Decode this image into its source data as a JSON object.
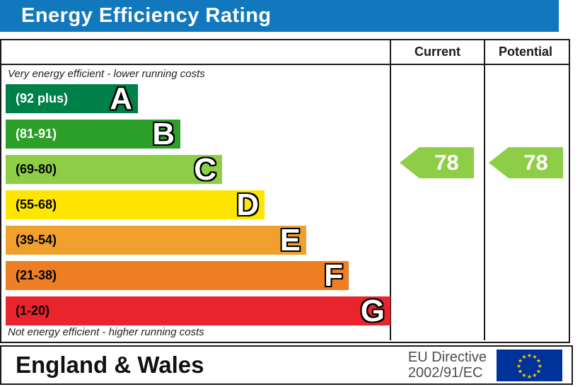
{
  "title": "Energy Efficiency Rating",
  "table": {
    "current_header": "Current",
    "potential_header": "Potential"
  },
  "captions": {
    "top": "Very energy efficient - lower running costs",
    "bottom": "Not energy efficient - higher running costs"
  },
  "footer": {
    "region": "England & Wales",
    "directive": [
      "EU Directive",
      "2002/91/EC"
    ]
  },
  "colors": {
    "title_bar": "#1278be",
    "border": "#1a1a1a",
    "arrow": "#8dce46",
    "eu_flag_bg": "#003399",
    "eu_star": "#ffcc00"
  },
  "chart_data": {
    "type": "bar",
    "orientation": "horizontal",
    "title": "Energy Efficiency Rating",
    "scale": [
      1,
      100
    ],
    "bands": [
      {
        "letter": "A",
        "range": "(92 plus)",
        "min": 92,
        "max": 100,
        "color": "#008049",
        "label_color": "#ffffff"
      },
      {
        "letter": "B",
        "range": "(81-91)",
        "min": 81,
        "max": 91,
        "color": "#2c9f29",
        "label_color": "#ffffff"
      },
      {
        "letter": "C",
        "range": "(69-80)",
        "min": 69,
        "max": 80,
        "color": "#8dce46",
        "label_color": "#000000"
      },
      {
        "letter": "D",
        "range": "(55-68)",
        "min": 55,
        "max": 68,
        "color": "#ffe500",
        "label_color": "#000000"
      },
      {
        "letter": "E",
        "range": "(39-54)",
        "min": 39,
        "max": 54,
        "color": "#f0a02c",
        "label_color": "#000000"
      },
      {
        "letter": "F",
        "range": "(21-38)",
        "min": 21,
        "max": 38,
        "color": "#ee7e24",
        "label_color": "#000000"
      },
      {
        "letter": "G",
        "range": "(1-20)",
        "min": 1,
        "max": 20,
        "color": "#e9242d",
        "label_color": "#000000"
      }
    ],
    "series": [
      {
        "name": "Current",
        "value": 78,
        "band": "C",
        "arrow_color": "#8dce46"
      },
      {
        "name": "Potential",
        "value": 78,
        "band": "C",
        "arrow_color": "#8dce46"
      }
    ]
  }
}
